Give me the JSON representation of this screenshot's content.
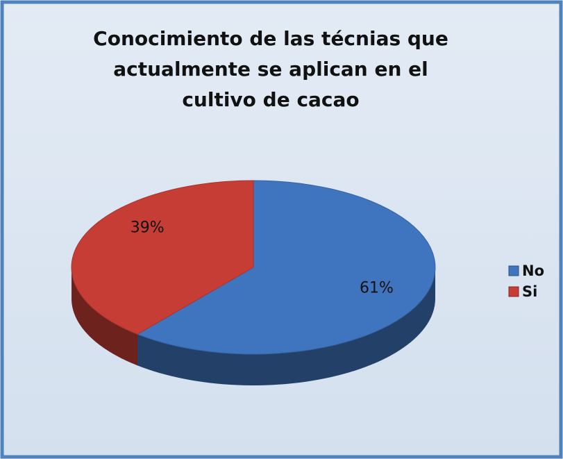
{
  "chart_data": {
    "type": "pie",
    "title": "Conocimiento de las técnias que actualmente se aplican en el cultivo de cacao",
    "categories": [
      "No",
      "Si"
    ],
    "values": [
      61,
      39
    ],
    "value_labels": [
      "61%",
      "39%"
    ],
    "colors": [
      "#3f74bf",
      "#c63d36"
    ],
    "three_d": true,
    "legend": "right"
  }
}
